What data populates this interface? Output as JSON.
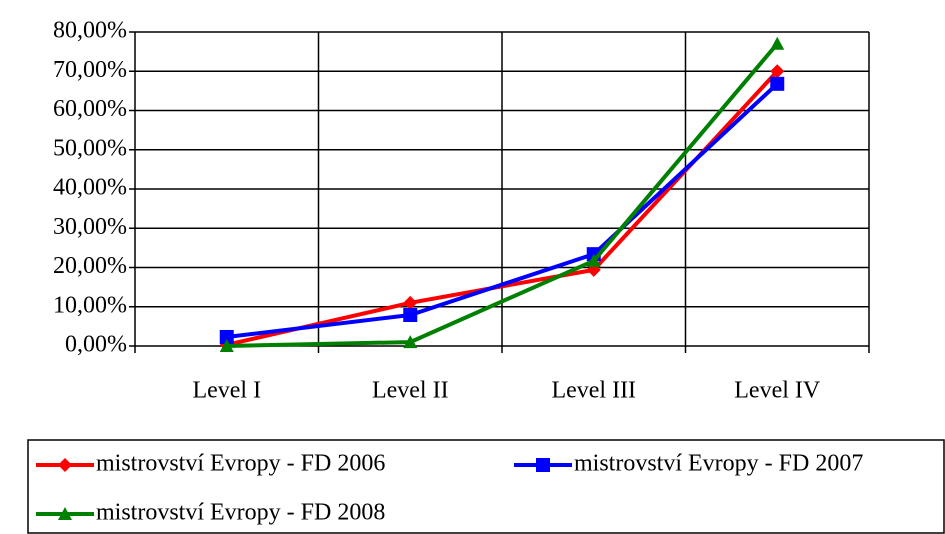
{
  "chart_data": {
    "type": "line",
    "categories": [
      "Level I",
      "Level II",
      "Level III",
      "Level IV"
    ],
    "series": [
      {
        "name": "mistrovství Evropy - FD 2006",
        "color": "#ff0000",
        "marker": "diamond",
        "values": [
          0.3,
          11,
          19.4,
          70
        ]
      },
      {
        "name": "mistrovství Evropy - FD 2007",
        "color": "#0000ff",
        "marker": "square",
        "values": [
          2.3,
          7.9,
          23.4,
          66.8
        ]
      },
      {
        "name": "mistrovství Evropy - FD 2008",
        "color": "#008000",
        "marker": "triangle",
        "values": [
          0,
          1,
          21.7,
          77
        ]
      }
    ],
    "ylim": [
      0,
      80
    ],
    "yticks": [
      {
        "value": 0,
        "label": "0,00%"
      },
      {
        "value": 10,
        "label": "10,00%"
      },
      {
        "value": 20,
        "label": "20,00%"
      },
      {
        "value": 30,
        "label": "30,00%"
      },
      {
        "value": 40,
        "label": "40,00%"
      },
      {
        "value": 50,
        "label": "50,00%"
      },
      {
        "value": 60,
        "label": "60,00%"
      },
      {
        "value": 70,
        "label": "70,00%"
      },
      {
        "value": 80,
        "label": "80,00%"
      }
    ],
    "grid": true,
    "legend": "bottom"
  }
}
